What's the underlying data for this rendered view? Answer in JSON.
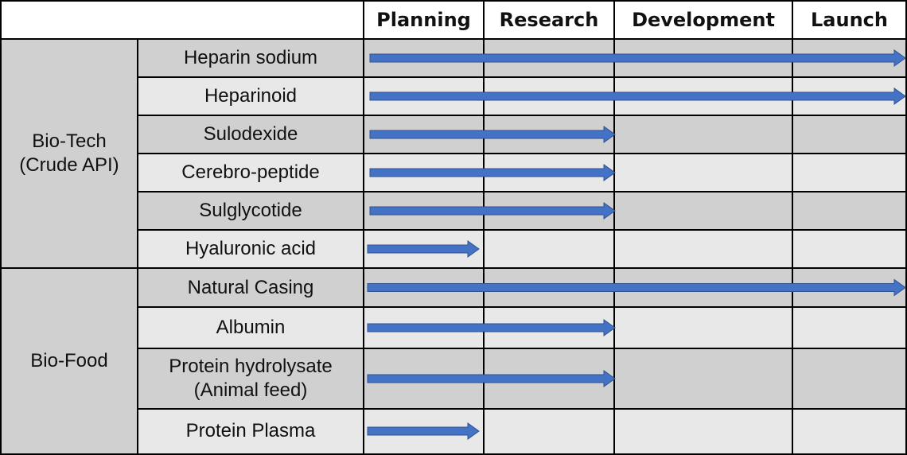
{
  "header": {
    "stages": [
      "Planning",
      "Research",
      "Development",
      "Launch"
    ]
  },
  "colors": {
    "dark_row": "#d0d0d0",
    "light_row": "#e8e8e8",
    "group_fill": "#d0d0d0",
    "arrow": "#4472c4",
    "arrow_edge": "#2f528f",
    "grid": "#000000"
  },
  "groups": [
    {
      "label": "Bio-Tech\n(Crude API)",
      "products": [
        {
          "name": "Heparin sodium",
          "stage_reached": "Launch"
        },
        {
          "name": "Heparinoid",
          "stage_reached": "Launch"
        },
        {
          "name": "Sulodexide",
          "stage_reached": "Research"
        },
        {
          "name": "Cerebro-peptide",
          "stage_reached": "Research"
        },
        {
          "name": "Sulglycotide",
          "stage_reached": "Research"
        },
        {
          "name": "Hyaluronic acid",
          "stage_reached": "Planning"
        }
      ]
    },
    {
      "label": "Bio-Food",
      "products": [
        {
          "name": "Natural Casing",
          "stage_reached": "Launch"
        },
        {
          "name": "Albumin",
          "stage_reached": "Research"
        },
        {
          "name": "Protein hydrolysate\n(Animal feed)",
          "stage_reached": "Research"
        },
        {
          "name": "Protein Plasma",
          "stage_reached": "Planning"
        }
      ]
    }
  ]
}
